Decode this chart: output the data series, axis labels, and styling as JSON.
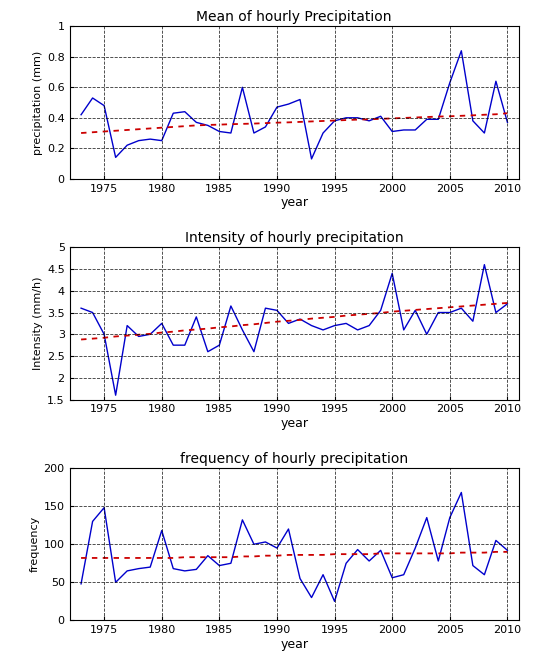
{
  "years": [
    1973,
    1974,
    1975,
    1976,
    1977,
    1978,
    1979,
    1980,
    1981,
    1982,
    1983,
    1984,
    1985,
    1986,
    1987,
    1988,
    1989,
    1990,
    1991,
    1992,
    1993,
    1994,
    1995,
    1996,
    1997,
    1998,
    1999,
    2000,
    2001,
    2002,
    2003,
    2004,
    2005,
    2006,
    2007,
    2008,
    2009,
    2010
  ],
  "mean_precip": [
    0.42,
    0.53,
    0.48,
    0.14,
    0.22,
    0.25,
    0.26,
    0.25,
    0.43,
    0.44,
    0.37,
    0.35,
    0.31,
    0.3,
    0.6,
    0.3,
    0.34,
    0.47,
    0.49,
    0.52,
    0.13,
    0.3,
    0.38,
    0.4,
    0.4,
    0.38,
    0.41,
    0.31,
    0.32,
    0.32,
    0.39,
    0.39,
    0.63,
    0.84,
    0.38,
    0.3,
    0.64,
    0.37
  ],
  "mean_trend": [
    0.3,
    0.305,
    0.31,
    0.315,
    0.32,
    0.325,
    0.33,
    0.335,
    0.34,
    0.345,
    0.35,
    0.353,
    0.355,
    0.358,
    0.36,
    0.362,
    0.365,
    0.368,
    0.37,
    0.373,
    0.376,
    0.379,
    0.382,
    0.385,
    0.388,
    0.39,
    0.393,
    0.396,
    0.399,
    0.402,
    0.405,
    0.408,
    0.41,
    0.413,
    0.416,
    0.42,
    0.423,
    0.43
  ],
  "intensity": [
    3.6,
    3.5,
    3.0,
    1.6,
    3.2,
    2.95,
    3.0,
    3.25,
    2.75,
    2.75,
    3.4,
    2.6,
    2.75,
    3.65,
    3.1,
    2.6,
    3.6,
    3.55,
    3.25,
    3.35,
    3.2,
    3.1,
    3.2,
    3.25,
    3.1,
    3.2,
    3.55,
    4.4,
    3.1,
    3.55,
    3.0,
    3.5,
    3.5,
    3.6,
    3.3,
    4.6,
    3.5,
    3.7
  ],
  "intensity_trend": [
    2.88,
    2.9,
    2.92,
    2.95,
    2.97,
    2.99,
    3.01,
    3.04,
    3.06,
    3.09,
    3.11,
    3.13,
    3.16,
    3.18,
    3.21,
    3.23,
    3.26,
    3.29,
    3.31,
    3.33,
    3.36,
    3.38,
    3.4,
    3.43,
    3.45,
    3.47,
    3.49,
    3.52,
    3.54,
    3.56,
    3.58,
    3.6,
    3.62,
    3.64,
    3.66,
    3.68,
    3.7,
    3.72
  ],
  "frequency": [
    48,
    130,
    148,
    50,
    65,
    68,
    70,
    118,
    68,
    65,
    67,
    85,
    72,
    75,
    132,
    100,
    103,
    95,
    120,
    55,
    30,
    60,
    25,
    75,
    93,
    78,
    92,
    56,
    60,
    95,
    135,
    78,
    135,
    168,
    72,
    60,
    105,
    92
  ],
  "frequency_trend": [
    82,
    82,
    82,
    82,
    82,
    82,
    82,
    82,
    82,
    83,
    83,
    83,
    83,
    83,
    84,
    84,
    85,
    85,
    86,
    86,
    86,
    86,
    87,
    87,
    87,
    87,
    88,
    88,
    88,
    88,
    88,
    88,
    88,
    89,
    89,
    89,
    90,
    90
  ],
  "line_color": "#0000CC",
  "trend_color": "#CC0000",
  "bg_color": "#ffffff",
  "title1": "Mean of hourly Precipitation",
  "title2": "Intensity of hourly precipitation",
  "title3": "frequency of hourly precipitation",
  "ylabel1": "precipitation (mm)",
  "ylabel2": "Intensity (mm/h)",
  "ylabel3": "frequency",
  "xlabel": "year",
  "ylim1": [
    0,
    1.0
  ],
  "ylim2": [
    1.5,
    5.0
  ],
  "ylim3": [
    0,
    200
  ],
  "yticks1": [
    0,
    0.2,
    0.4,
    0.6,
    0.8,
    1.0
  ],
  "yticks2": [
    1.5,
    2.0,
    2.5,
    3.0,
    3.5,
    4.0,
    4.5,
    5.0
  ],
  "yticks3": [
    0,
    50,
    100,
    150,
    200
  ],
  "xlim": [
    1972,
    2011
  ],
  "xticks": [
    1975,
    1980,
    1985,
    1990,
    1995,
    2000,
    2005,
    2010
  ]
}
